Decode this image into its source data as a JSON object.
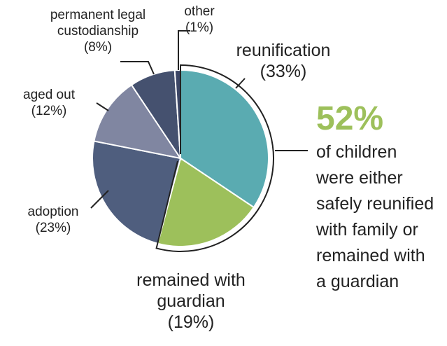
{
  "chart_data": {
    "type": "pie",
    "categories": [
      "reunification",
      "remained with guardian",
      "adoption",
      "aged out",
      "permanent legal custodianship",
      "other"
    ],
    "values": [
      33,
      19,
      23,
      12,
      8,
      1
    ],
    "value_labels": [
      "(33%)",
      "(19%)",
      "(23%)",
      "(12%)",
      "(8%)",
      "(1%)"
    ],
    "colors": [
      "#5aabb1",
      "#9dc05b",
      "#4f5e7e",
      "#8086a1",
      "#45516f",
      "#3c4666"
    ],
    "annotation": {
      "headline": "52%",
      "text": "of children were either safely reunified with family or remained with a guardian"
    }
  }
}
